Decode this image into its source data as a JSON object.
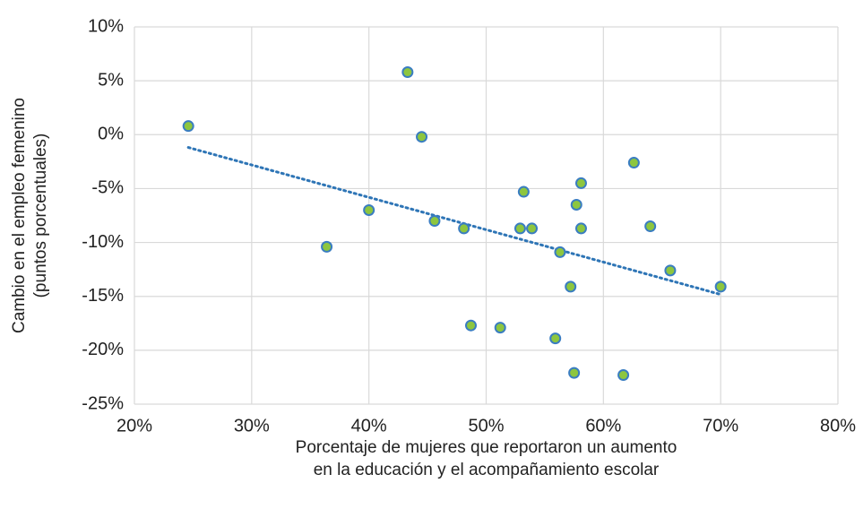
{
  "chart_data": {
    "type": "scatter",
    "x_label": [
      "Porcentaje de mujeres que reportaron un aumento",
      "en la educación y el acompañamiento escolar"
    ],
    "y_label": [
      "Cambio en el empleo femenino",
      "(puntos porcentuales)"
    ],
    "x": [
      24.6,
      36.4,
      40.0,
      43.3,
      44.5,
      45.6,
      48.1,
      48.7,
      51.2,
      52.9,
      53.2,
      53.9,
      55.9,
      56.3,
      57.2,
      57.5,
      57.7,
      58.1,
      58.1,
      62.6,
      61.7,
      64.0,
      65.7,
      70.0
    ],
    "values": [
      0.8,
      -10.4,
      -7.0,
      5.8,
      -0.2,
      -8.0,
      -8.7,
      -17.7,
      -17.9,
      -8.7,
      -5.3,
      -8.7,
      -18.9,
      -10.9,
      -14.1,
      -22.1,
      -6.5,
      -4.5,
      -8.7,
      -2.6,
      -22.3,
      -8.5,
      -12.6,
      -14.1
    ],
    "color": "#8dc63f",
    "edge_color": "#3a7dc1",
    "trendline": true,
    "trendline_color": "#2e75b6",
    "grid": true,
    "xlim": [
      20,
      80
    ],
    "xticks": [
      {
        "value": 20,
        "label": "20%"
      },
      {
        "value": 30,
        "label": "30%"
      },
      {
        "value": 40,
        "label": "40%"
      },
      {
        "value": 50,
        "label": "50%"
      },
      {
        "value": 60,
        "label": "60%"
      },
      {
        "value": 70,
        "label": "70%"
      },
      {
        "value": 80,
        "label": "80%"
      }
    ],
    "ylim": [
      -25,
      10
    ],
    "yticks": [
      {
        "value": -25,
        "label": "-25%"
      },
      {
        "value": -20,
        "label": "-20%"
      },
      {
        "value": -15,
        "label": "-15%"
      },
      {
        "value": -10,
        "label": "-10%"
      },
      {
        "value": -5,
        "label": "-5%"
      },
      {
        "value": 0,
        "label": "0%"
      },
      {
        "value": 5,
        "label": "5%"
      },
      {
        "value": 10,
        "label": "10%"
      }
    ]
  }
}
